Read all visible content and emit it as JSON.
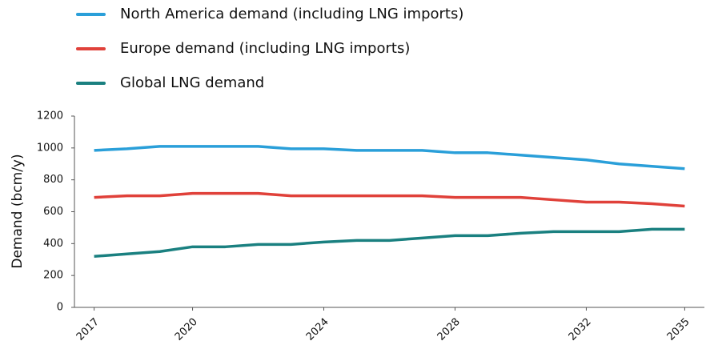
{
  "chart_data": {
    "type": "line",
    "y_label": "Demand (bcm/y)",
    "x": [
      2017,
      2018,
      2019,
      2020,
      2021,
      2022,
      2023,
      2024,
      2025,
      2026,
      2027,
      2028,
      2029,
      2030,
      2031,
      2032,
      2033,
      2034,
      2035
    ],
    "series": [
      {
        "name": "North America demand (including LNG imports)",
        "color": "#2a9fd9",
        "values": [
          985,
          995,
          1010,
          1010,
          1010,
          1010,
          995,
          995,
          985,
          985,
          985,
          970,
          970,
          955,
          940,
          925,
          900,
          885,
          870
        ]
      },
      {
        "name": "Europe demand (including LNG imports)",
        "color": "#e0413a",
        "values": [
          690,
          700,
          700,
          715,
          715,
          715,
          700,
          700,
          700,
          700,
          700,
          690,
          690,
          690,
          675,
          660,
          660,
          650,
          635
        ]
      },
      {
        "name": "Global LNG demand",
        "color": "#1a8080",
        "values": [
          320,
          335,
          350,
          380,
          380,
          395,
          395,
          410,
          420,
          420,
          435,
          450,
          450,
          465,
          475,
          475,
          475,
          490,
          490
        ]
      }
    ],
    "xlim": [
      2016.4,
      2035.6
    ],
    "xticks": [
      2017,
      2020,
      2024,
      2028,
      2032,
      2035
    ],
    "ylim": [
      0,
      1200
    ],
    "yticks": [
      0,
      200,
      400,
      600,
      800,
      1000,
      1200
    ],
    "grid": false
  }
}
